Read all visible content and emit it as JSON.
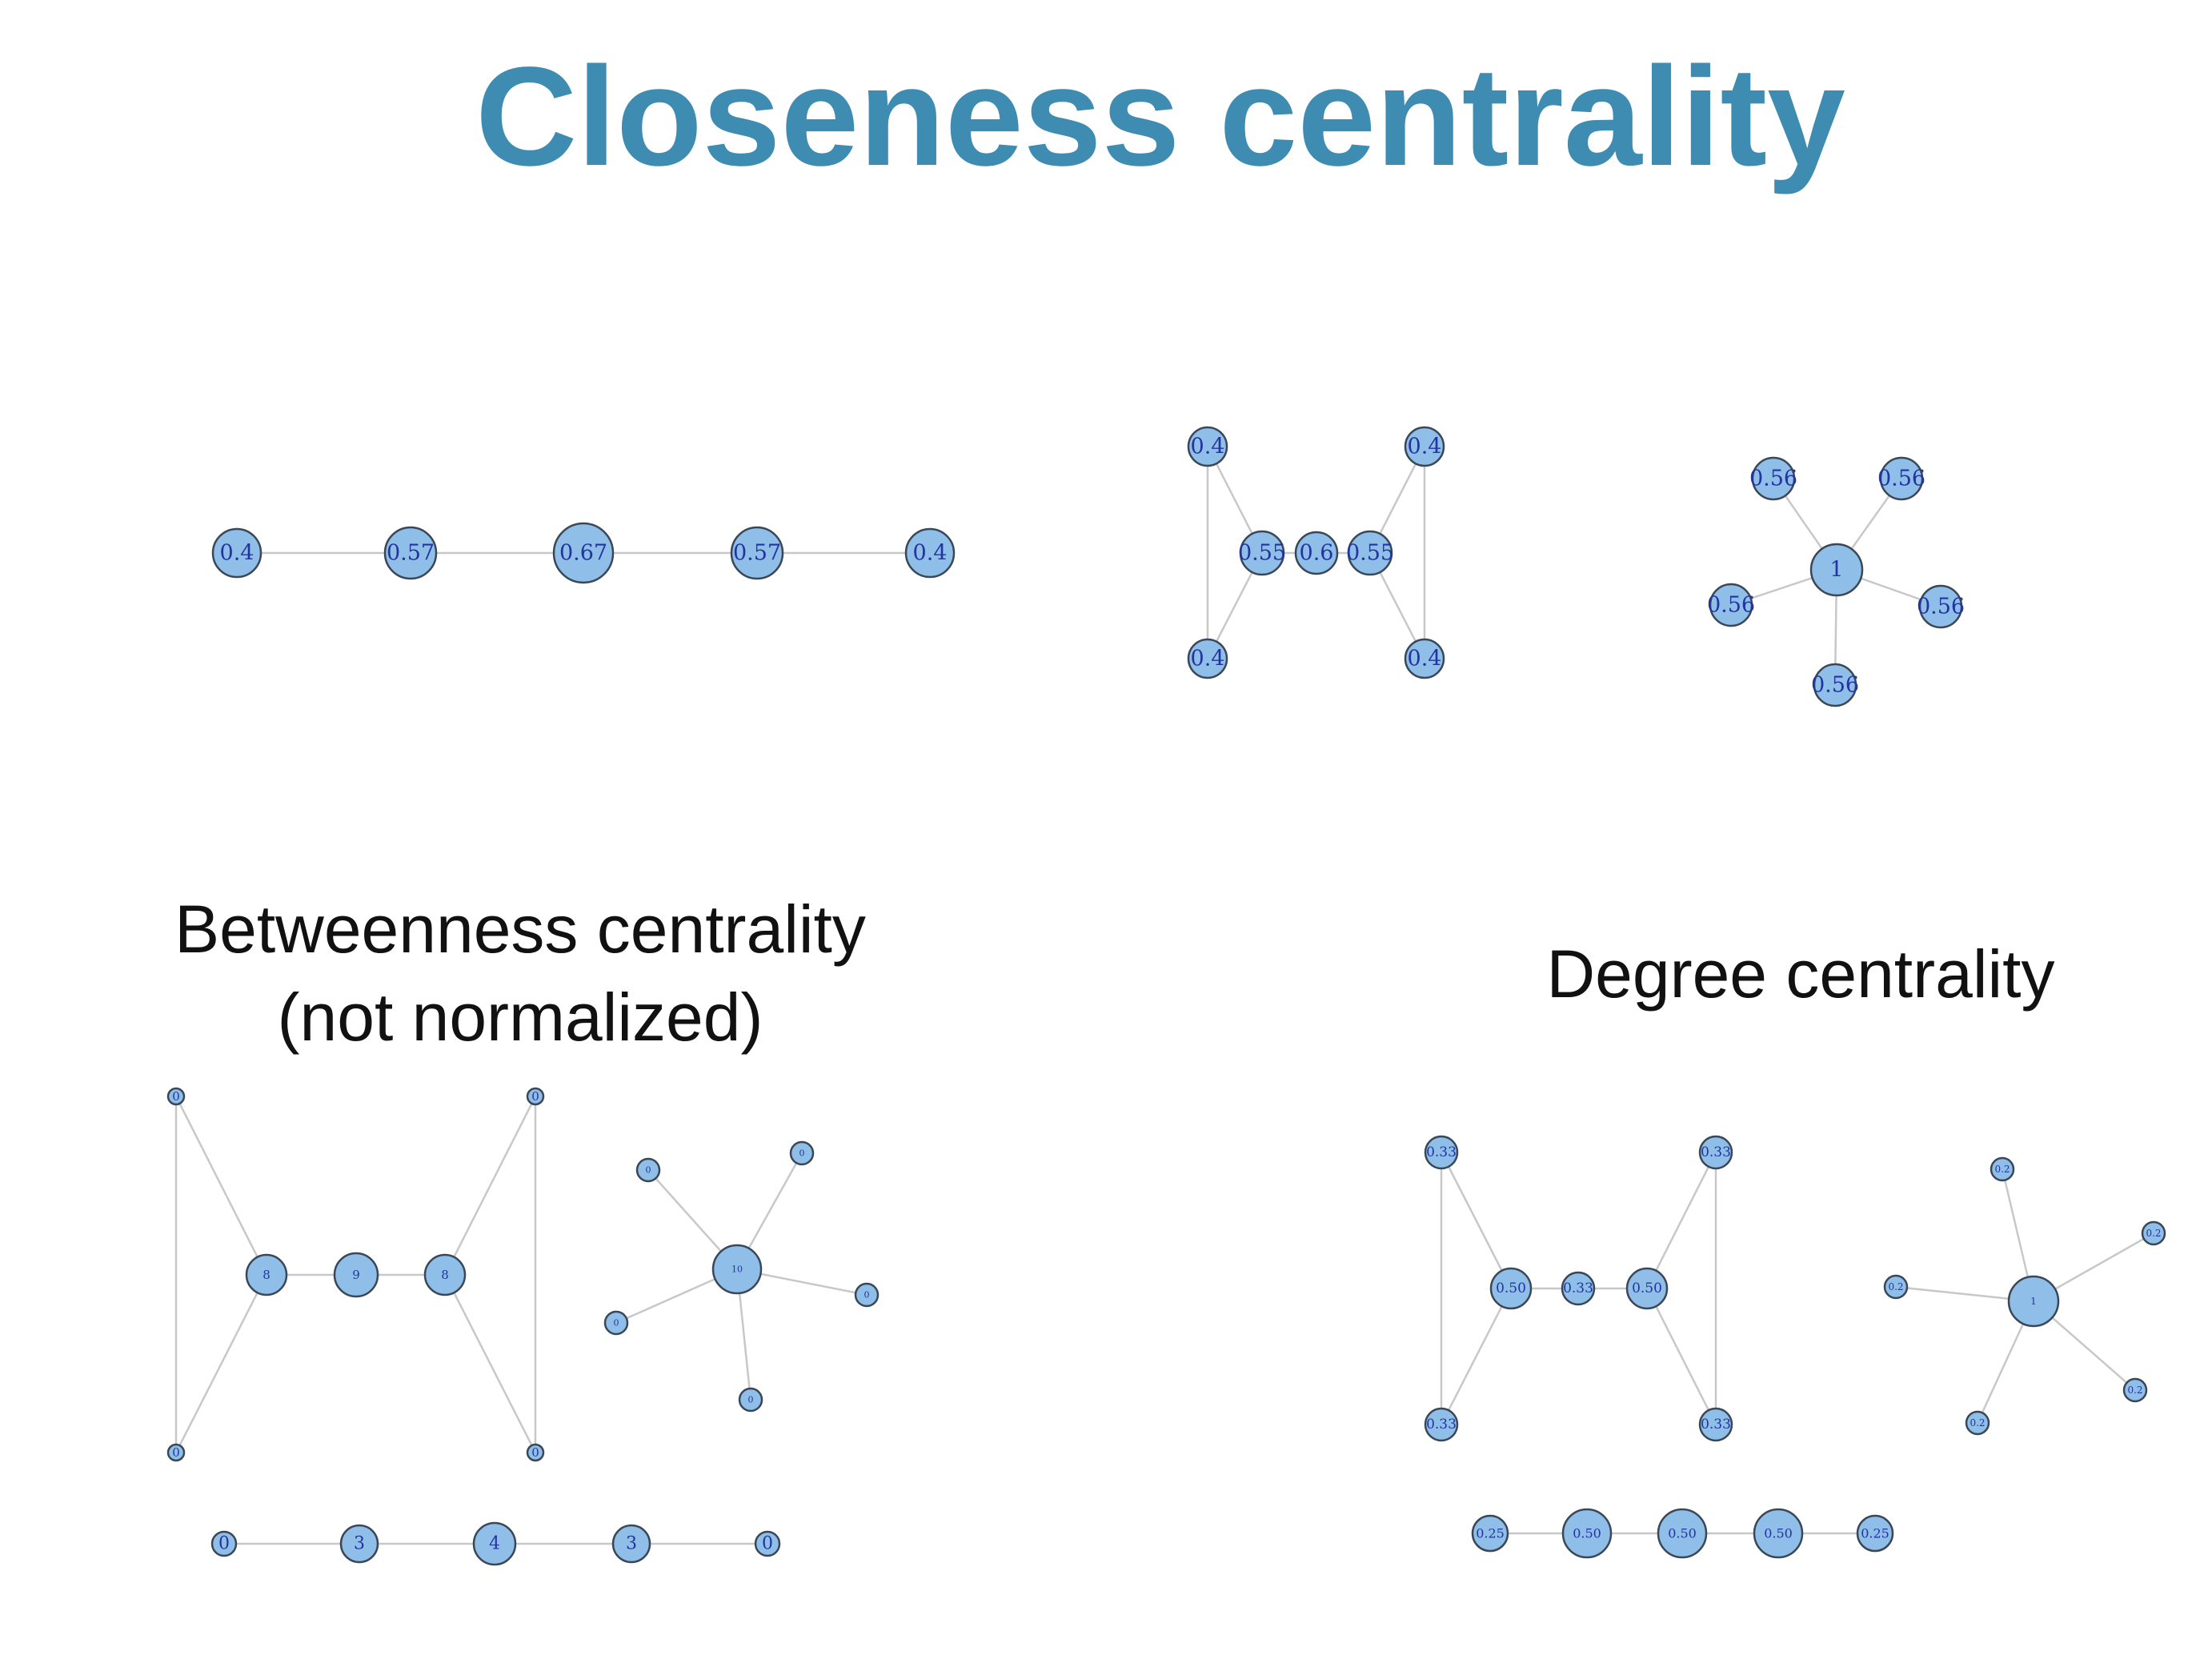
{
  "title": "Closeness centrality",
  "labels": {
    "betweenness_line1": "Betweenness centrality",
    "betweenness_line2": "(not normalized)",
    "degree": "Degree centrality"
  },
  "colors": {
    "title": "#3e8cb2",
    "node_fill": "#8fbfe8",
    "node_stroke": "#3a4756",
    "edge": "#c8c8c8",
    "node_text": "#2334a0"
  },
  "graphs": {
    "closeness_path": {
      "nodes": [
        "0.4",
        "0.57",
        "0.67",
        "0.57",
        "0.4"
      ],
      "edges": [
        [
          0,
          1
        ],
        [
          1,
          2
        ],
        [
          2,
          3
        ],
        [
          3,
          4
        ]
      ]
    },
    "closeness_bowtie": {
      "nodes": [
        "0.4",
        "0.4",
        "0.55",
        "0.6",
        "0.55",
        "0.4",
        "0.4"
      ],
      "edges": [
        [
          0,
          1
        ],
        [
          0,
          2
        ],
        [
          1,
          2
        ],
        [
          2,
          3
        ],
        [
          3,
          4
        ],
        [
          4,
          5
        ],
        [
          4,
          6
        ],
        [
          5,
          6
        ]
      ]
    },
    "closeness_star": {
      "nodes": [
        "1",
        "0.56",
        "0.56",
        "0.56",
        "0.56",
        "0.56"
      ],
      "edges": [
        [
          0,
          1
        ],
        [
          0,
          2
        ],
        [
          0,
          3
        ],
        [
          0,
          4
        ],
        [
          0,
          5
        ]
      ]
    },
    "betweenness_bowtie": {
      "nodes": [
        "0",
        "0",
        "8",
        "9",
        "8",
        "0",
        "0"
      ],
      "edges": [
        [
          0,
          1
        ],
        [
          0,
          2
        ],
        [
          1,
          2
        ],
        [
          2,
          3
        ],
        [
          3,
          4
        ],
        [
          4,
          5
        ],
        [
          4,
          6
        ],
        [
          5,
          6
        ]
      ]
    },
    "betweenness_star": {
      "nodes": [
        "10",
        "0",
        "0",
        "0",
        "0",
        "0"
      ],
      "edges": [
        [
          0,
          1
        ],
        [
          0,
          2
        ],
        [
          0,
          3
        ],
        [
          0,
          4
        ],
        [
          0,
          5
        ]
      ]
    },
    "betweenness_path": {
      "nodes": [
        "0",
        "3",
        "4",
        "3",
        "0"
      ],
      "edges": [
        [
          0,
          1
        ],
        [
          1,
          2
        ],
        [
          2,
          3
        ],
        [
          3,
          4
        ]
      ]
    },
    "degree_bowtie": {
      "nodes": [
        "0.33",
        "0.33",
        "0.50",
        "0.33",
        "0.50",
        "0.33",
        "0.33"
      ],
      "edges": [
        [
          0,
          1
        ],
        [
          0,
          2
        ],
        [
          1,
          2
        ],
        [
          2,
          3
        ],
        [
          3,
          4
        ],
        [
          4,
          5
        ],
        [
          4,
          6
        ],
        [
          5,
          6
        ]
      ]
    },
    "degree_star": {
      "nodes": [
        "1",
        "0.2",
        "0.2",
        "0.2",
        "0.2",
        "0.2"
      ],
      "edges": [
        [
          0,
          1
        ],
        [
          0,
          2
        ],
        [
          0,
          3
        ],
        [
          0,
          4
        ],
        [
          0,
          5
        ]
      ]
    },
    "degree_path": {
      "nodes": [
        "0.25",
        "0.50",
        "0.50",
        "0.50",
        "0.25"
      ],
      "edges": [
        [
          0,
          1
        ],
        [
          1,
          2
        ],
        [
          2,
          3
        ],
        [
          3,
          4
        ]
      ]
    }
  }
}
